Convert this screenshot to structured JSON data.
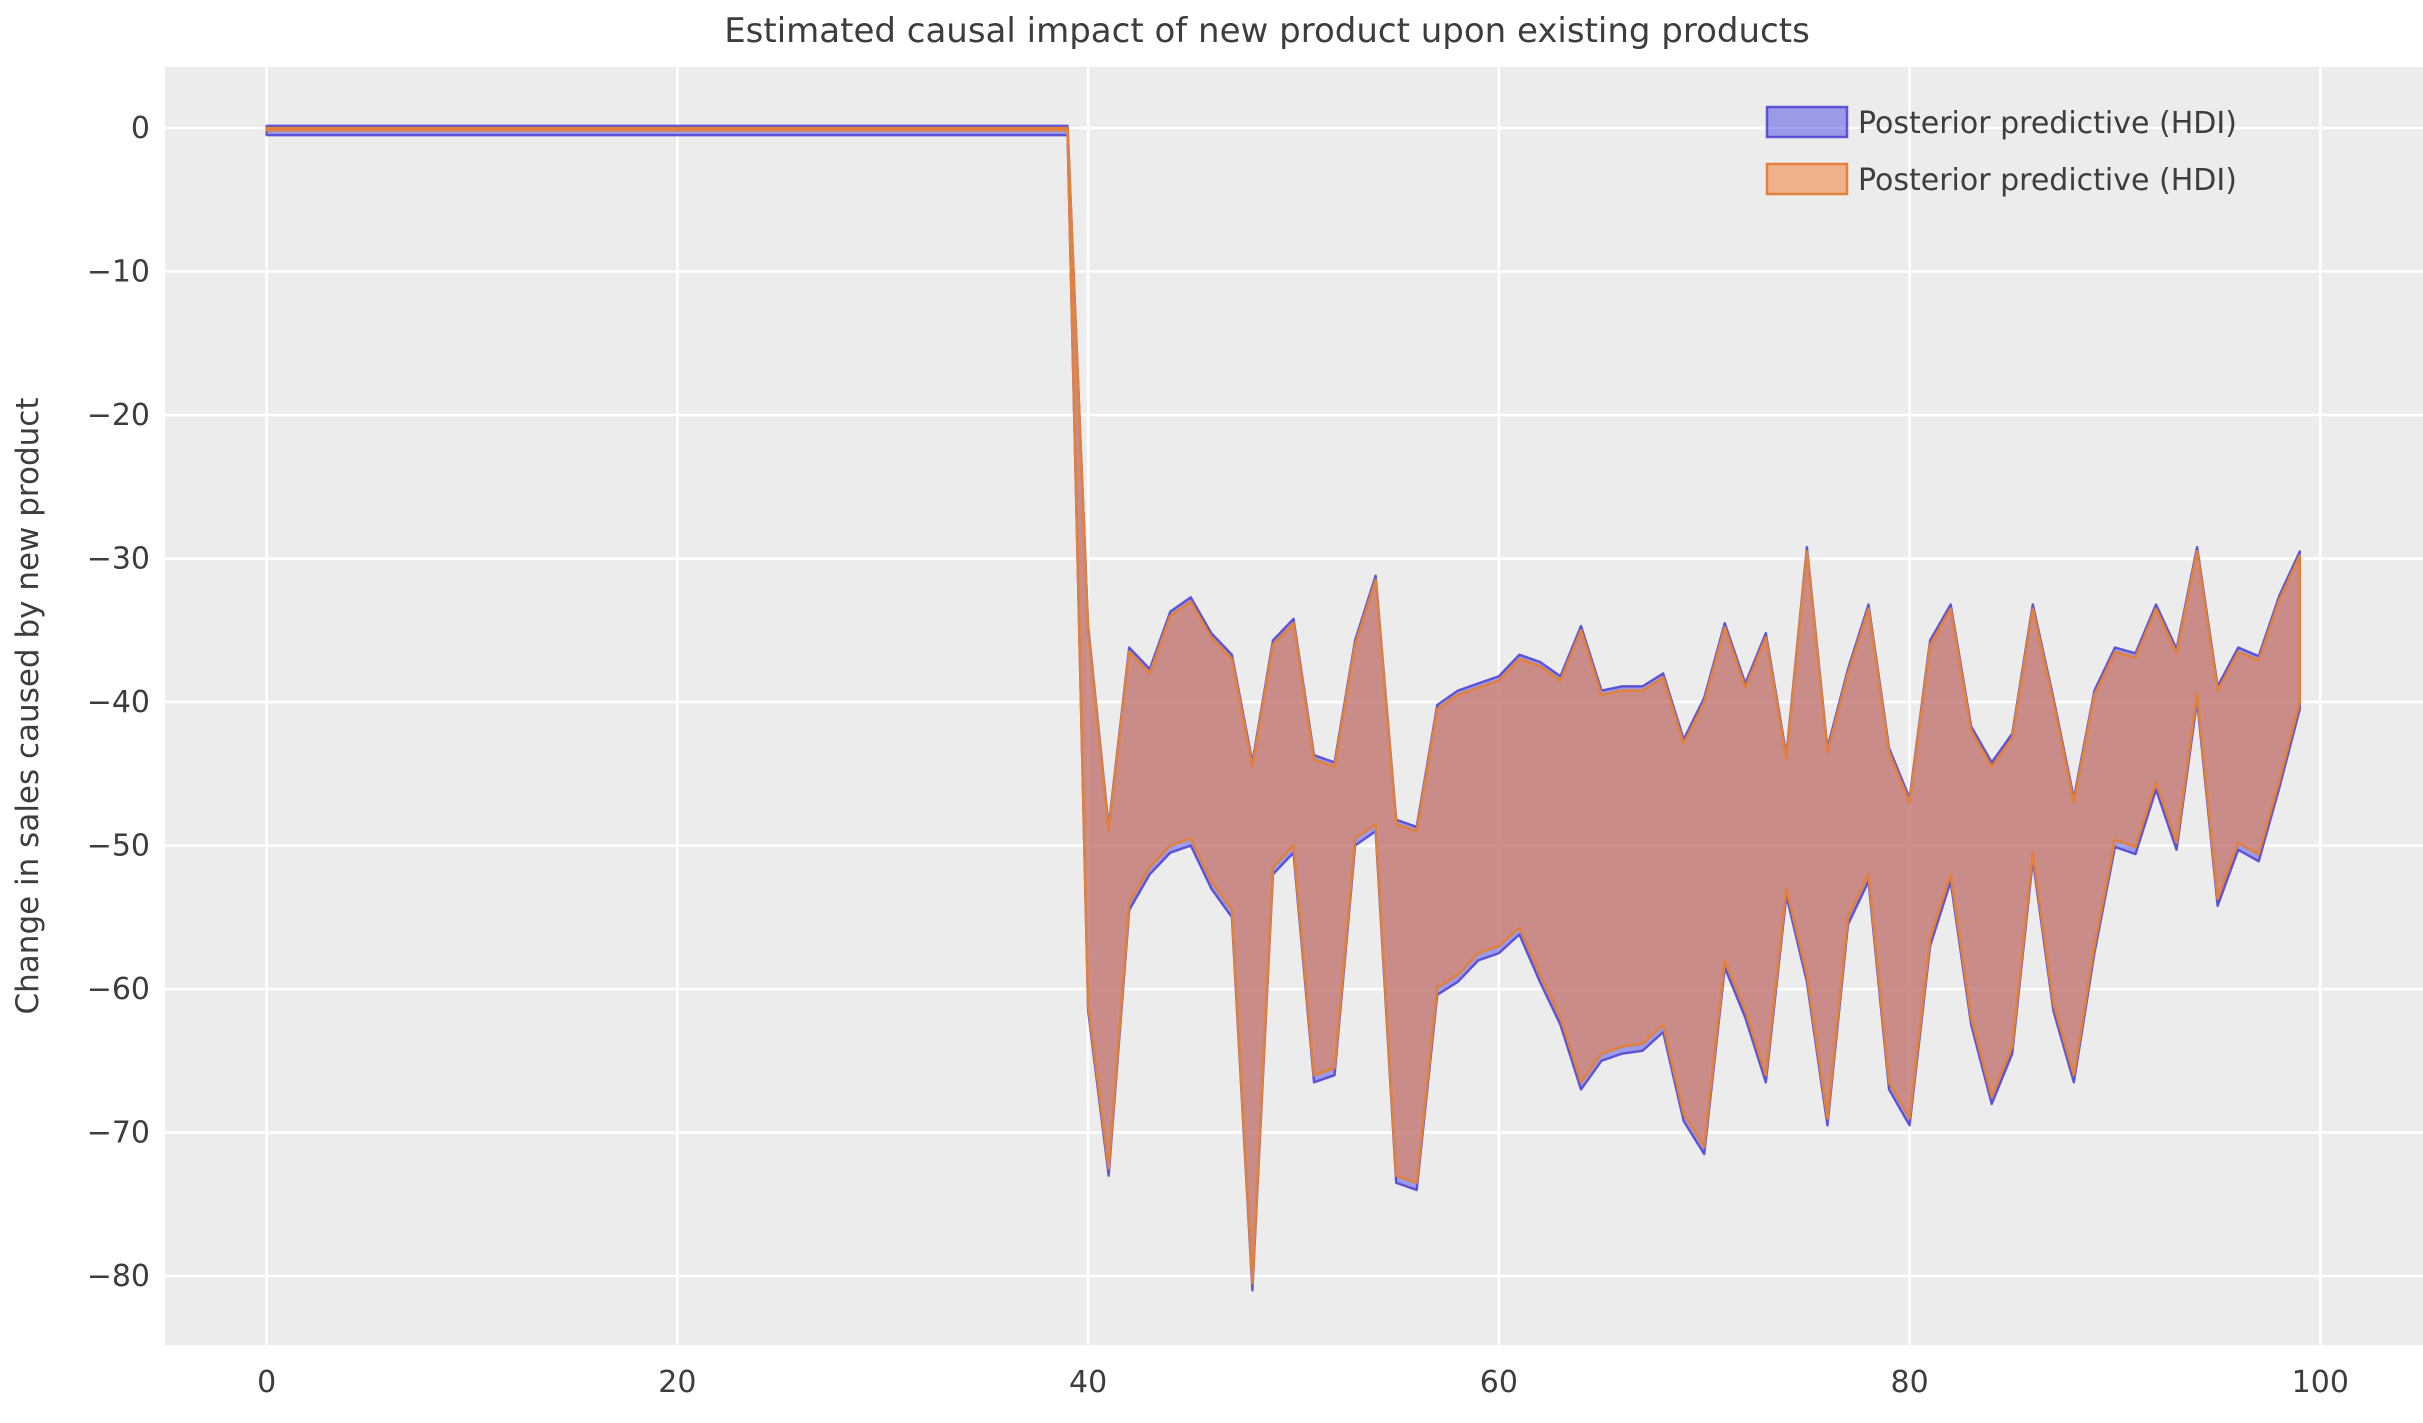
{
  "chart_data": {
    "type": "area",
    "title": "Estimated causal impact of new product upon existing products",
    "xlabel": "",
    "ylabel": "Change in sales caused by new product",
    "x_ticks": [
      0,
      20,
      40,
      60,
      80,
      100
    ],
    "y_ticks": [
      0,
      -10,
      -20,
      -30,
      -40,
      -50,
      -60,
      -70,
      -80
    ],
    "xlim": [
      -4.95,
      105.0
    ],
    "ylim": [
      -84.8,
      4.25
    ],
    "grid": true,
    "legend_position": "upper right",
    "colors": {
      "figure_background": "#ffffff",
      "plot_background": "#ececec",
      "gridline": "#ffffff",
      "text": "#3d3d3d",
      "band_overlap": "#ca8d88",
      "blue_fill": "rgba(72,72,228,0.50)",
      "blue_edge": "rgba(74,64,210,0.85)",
      "orange_fill": "rgba(242,130,58,0.55)",
      "orange_edge": "#e2813c"
    },
    "legend": [
      {
        "label": "Posterior predictive (HDI)",
        "fill": "rgba(72,72,228,0.50)",
        "edge": "rgba(74,64,210,0.85)"
      },
      {
        "label": "Posterior predictive (HDI)",
        "fill": "rgba(242,130,58,0.55)",
        "edge": "#e2813c"
      }
    ],
    "series": [
      {
        "name": "Posterior predictive (HDI) blue band",
        "fill": "rgba(72,72,228,0.50)",
        "edge": "rgba(74,64,210,0.85)",
        "edge_width": 2.4,
        "x": [
          0,
          39,
          40,
          41,
          42,
          43,
          44,
          45,
          46,
          47,
          48,
          49,
          50,
          51,
          52,
          53,
          54,
          55,
          56,
          57,
          58,
          59,
          60,
          61,
          62,
          63,
          64,
          65,
          66,
          67,
          68,
          69,
          70,
          71,
          72,
          73,
          74,
          75,
          76,
          77,
          78,
          79,
          80,
          81,
          82,
          83,
          84,
          85,
          86,
          87,
          88,
          89,
          90,
          91,
          92,
          93,
          94,
          95,
          96,
          97,
          98,
          99
        ],
        "upper": [
          0.15,
          0.15,
          -34.7,
          -48.7,
          -36.2,
          -37.7,
          -33.7,
          -32.7,
          -35.2,
          -36.7,
          -44.2,
          -35.7,
          -34.2,
          -43.7,
          -44.2,
          -35.7,
          -31.2,
          -48.2,
          -48.7,
          -40.2,
          -39.2,
          -38.7,
          -38.2,
          -36.7,
          -37.2,
          -38.2,
          -34.7,
          -39.2,
          -38.9,
          -38.9,
          -38.0,
          -42.6,
          -39.7,
          -34.5,
          -38.7,
          -35.2,
          -43.7,
          -29.2,
          -43.2,
          -37.7,
          -33.2,
          -43.2,
          -46.7,
          -35.7,
          -33.2,
          -41.7,
          -44.2,
          -42.2,
          -33.2,
          -39.7,
          -46.7,
          -39.2,
          -36.2,
          -36.6,
          -33.2,
          -36.3,
          -29.2,
          -38.9,
          -36.2,
          -36.8,
          -32.6,
          -29.5
        ],
        "lower": [
          -0.5,
          -0.5,
          -61.5,
          -73.0,
          -54.5,
          -52.0,
          -50.5,
          -50.0,
          -53.0,
          -55.0,
          -81.0,
          -52.0,
          -50.5,
          -66.5,
          -66.0,
          -50.0,
          -49.0,
          -73.5,
          -74.0,
          -60.4,
          -59.5,
          -58.0,
          -57.5,
          -56.2,
          -59.5,
          -62.5,
          -67.0,
          -65.0,
          -64.5,
          -64.3,
          -63.0,
          -69.2,
          -71.5,
          -58.5,
          -62.0,
          -66.5,
          -53.5,
          -59.5,
          -69.5,
          -55.5,
          -52.5,
          -67.0,
          -69.5,
          -57.0,
          -52.5,
          -62.5,
          -68.0,
          -64.5,
          -51.0,
          -61.5,
          -66.5,
          -57.5,
          -50.1,
          -50.6,
          -46.1,
          -50.3,
          -39.9,
          -54.2,
          -50.3,
          -51.1,
          -46.0,
          -40.5
        ]
      },
      {
        "name": "Posterior predictive (HDI) orange band",
        "fill": "rgba(242,130,58,0.55)",
        "edge": "#e2813c",
        "edge_width": 2.6,
        "x": [
          0,
          39,
          40,
          41,
          42,
          43,
          44,
          45,
          46,
          47,
          48,
          49,
          50,
          51,
          52,
          53,
          54,
          55,
          56,
          57,
          58,
          59,
          60,
          61,
          62,
          63,
          64,
          65,
          66,
          67,
          68,
          69,
          70,
          71,
          72,
          73,
          74,
          75,
          76,
          77,
          78,
          79,
          80,
          81,
          82,
          83,
          84,
          85,
          86,
          87,
          88,
          89,
          90,
          91,
          92,
          93,
          94,
          95,
          96,
          97,
          98,
          99
        ],
        "upper": [
          0,
          0,
          -35.0,
          -49.0,
          -36.5,
          -38.0,
          -34.0,
          -33.0,
          -35.5,
          -37.0,
          -44.5,
          -36.0,
          -34.5,
          -44.0,
          -44.5,
          -36.0,
          -31.5,
          -48.5,
          -49.0,
          -40.5,
          -39.5,
          -39.0,
          -38.5,
          -37.0,
          -37.5,
          -38.5,
          -35.0,
          -39.5,
          -39.2,
          -39.2,
          -38.3,
          -42.9,
          -40.0,
          -34.8,
          -39.0,
          -35.5,
          -44.0,
          -29.5,
          -43.5,
          -38.0,
          -33.5,
          -43.5,
          -47.0,
          -36.0,
          -33.5,
          -42.0,
          -44.5,
          -42.5,
          -33.5,
          -40.0,
          -47.0,
          -39.5,
          -36.5,
          -36.9,
          -33.5,
          -36.6,
          -29.5,
          -39.2,
          -36.5,
          -37.1,
          -32.9,
          -29.8
        ],
        "lower": [
          -0.15,
          -0.15,
          -61.0,
          -72.5,
          -54.0,
          -51.5,
          -50.0,
          -49.5,
          -52.5,
          -54.5,
          -80.5,
          -51.5,
          -50.0,
          -66.0,
          -65.5,
          -49.5,
          -48.5,
          -73.0,
          -73.5,
          -59.9,
          -59.0,
          -57.5,
          -57.0,
          -55.7,
          -59.0,
          -62.0,
          -66.5,
          -64.5,
          -64.0,
          -63.8,
          -62.5,
          -68.7,
          -71.0,
          -58.0,
          -61.5,
          -66.0,
          -53.0,
          -59.0,
          -69.0,
          -55.0,
          -52.0,
          -66.5,
          -69.0,
          -56.5,
          -52.0,
          -62.0,
          -67.5,
          -64.0,
          -50.5,
          -61.0,
          -66.0,
          -57.0,
          -49.6,
          -50.1,
          -45.6,
          -49.8,
          -39.4,
          -53.7,
          -49.8,
          -50.6,
          -45.5,
          -40.0
        ]
      }
    ]
  }
}
